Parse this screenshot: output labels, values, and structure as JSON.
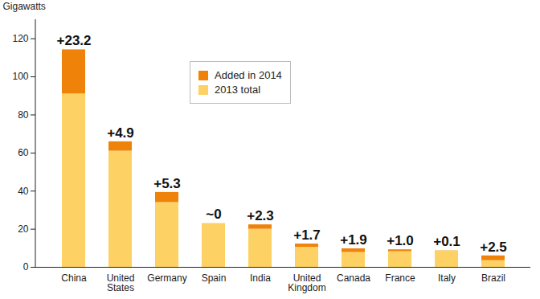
{
  "chart_data": {
    "type": "bar",
    "stacked": true,
    "data_labels": true,
    "legend": "top",
    "grid": false,
    "y_label": "Gigawatts",
    "categories": [
      "China",
      "United States",
      "Germany",
      "Spain",
      "India",
      "United Kingdom",
      "Canada",
      "France",
      "Italy",
      "Brazil"
    ],
    "series": [
      {
        "name": "2013 total",
        "color": "#fdd163",
        "values": [
          91,
          61,
          34,
          23,
          20,
          10.5,
          7.8,
          8.2,
          8.6,
          3.5
        ]
      },
      {
        "name": "Added in 2014",
        "color": "#ef8209",
        "values": [
          23.2,
          4.9,
          5.3,
          0,
          2.3,
          1.7,
          1.9,
          1.0,
          0.1,
          2.5
        ],
        "value_labels": [
          "+23.2",
          "+4.9",
          "+5.3",
          "~0",
          "+2.3",
          "+1.7",
          "+1.9",
          "+1.0",
          "+0.1",
          "+2.5"
        ]
      }
    ],
    "ylim": [
      0,
      130
    ],
    "yticks": [
      0,
      20,
      40,
      60,
      80,
      100,
      120
    ]
  }
}
